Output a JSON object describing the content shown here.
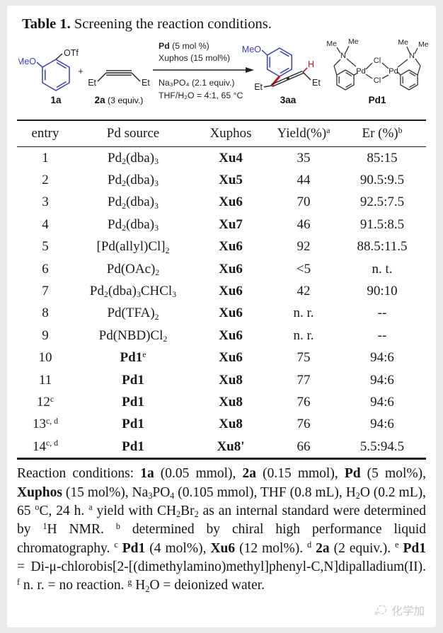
{
  "title": {
    "bold": "Table 1.",
    "rest": " Screening the reaction conditions."
  },
  "colors": {
    "structure_blue": "#3b3bc0",
    "highlight_red": "#c81414",
    "watermark_gray": "#c6c6c6"
  },
  "scheme": {
    "meo": "MeO",
    "otf": "OTf",
    "plus": "+",
    "et": "Et",
    "h": "H",
    "me": "Me",
    "n": "N",
    "pd": "Pd",
    "cl": "Cl",
    "label_1a": "1a",
    "label_2a_bold": "2a",
    "label_2a_rest": " (3 equiv.)",
    "label_3aa": "3aa",
    "label_pd1": "Pd1",
    "cond1_bold": "Pd",
    "cond1_rest": " (5 mol %)",
    "cond2": "Xuphos (15 mol%)",
    "cond3": "Na₃PO₄ (2.1 equiv.)",
    "cond4": "THF/H₂O = 4:1, 65 °C"
  },
  "table": {
    "headers": [
      [
        {
          "t": "entry"
        }
      ],
      [
        {
          "t": "Pd source"
        }
      ],
      [
        {
          "t": "Xuphos"
        }
      ],
      [
        {
          "t": "Yield(%)"
        },
        {
          "t": "a",
          "sup": 1
        }
      ],
      [
        {
          "t": "Er (%)"
        },
        {
          "t": "b",
          "sup": 1
        }
      ]
    ],
    "rows": [
      {
        "entry": [
          {
            "t": "1"
          }
        ],
        "pd": [
          {
            "t": "Pd"
          },
          {
            "t": "2",
            "sub": 1
          },
          {
            "t": "(dba)"
          },
          {
            "t": "3",
            "sub": 1
          }
        ],
        "xu": [
          {
            "t": "Xu4",
            "b": 1
          }
        ],
        "yield": [
          {
            "t": "35"
          }
        ],
        "er": [
          {
            "t": "85:15"
          }
        ]
      },
      {
        "entry": [
          {
            "t": "2"
          }
        ],
        "pd": [
          {
            "t": "Pd"
          },
          {
            "t": "2",
            "sub": 1
          },
          {
            "t": "(dba)"
          },
          {
            "t": "3",
            "sub": 1
          }
        ],
        "xu": [
          {
            "t": "Xu5",
            "b": 1
          }
        ],
        "yield": [
          {
            "t": "44"
          }
        ],
        "er": [
          {
            "t": "90.5:9.5"
          }
        ]
      },
      {
        "entry": [
          {
            "t": "3"
          }
        ],
        "pd": [
          {
            "t": "Pd"
          },
          {
            "t": "2",
            "sub": 1
          },
          {
            "t": "(dba)"
          },
          {
            "t": "3",
            "sub": 1
          }
        ],
        "xu": [
          {
            "t": "Xu6",
            "b": 1
          }
        ],
        "yield": [
          {
            "t": "70"
          }
        ],
        "er": [
          {
            "t": "92.5:7.5"
          }
        ]
      },
      {
        "entry": [
          {
            "t": "4"
          }
        ],
        "pd": [
          {
            "t": "Pd"
          },
          {
            "t": "2",
            "sub": 1
          },
          {
            "t": "(dba)"
          },
          {
            "t": "3",
            "sub": 1
          }
        ],
        "xu": [
          {
            "t": "Xu7",
            "b": 1
          }
        ],
        "yield": [
          {
            "t": "46"
          }
        ],
        "er": [
          {
            "t": "91.5:8.5"
          }
        ]
      },
      {
        "entry": [
          {
            "t": "5"
          }
        ],
        "pd": [
          {
            "t": "[Pd(allyl)Cl]"
          },
          {
            "t": "2",
            "sub": 1
          }
        ],
        "xu": [
          {
            "t": "Xu6",
            "b": 1
          }
        ],
        "yield": [
          {
            "t": "92"
          }
        ],
        "er": [
          {
            "t": "88.5:11.5"
          }
        ]
      },
      {
        "entry": [
          {
            "t": "6"
          }
        ],
        "pd": [
          {
            "t": "Pd(OAc)"
          },
          {
            "t": "2",
            "sub": 1
          }
        ],
        "xu": [
          {
            "t": "Xu6",
            "b": 1
          }
        ],
        "yield": [
          {
            "t": "<5"
          }
        ],
        "er": [
          {
            "t": "n. t."
          }
        ]
      },
      {
        "entry": [
          {
            "t": "7"
          }
        ],
        "pd": [
          {
            "t": "Pd"
          },
          {
            "t": "2",
            "sub": 1
          },
          {
            "t": "(dba)"
          },
          {
            "t": "3",
            "sub": 1
          },
          {
            "t": "CHCl"
          },
          {
            "t": "3",
            "sub": 1
          }
        ],
        "xu": [
          {
            "t": "Xu6",
            "b": 1
          }
        ],
        "yield": [
          {
            "t": "42"
          }
        ],
        "er": [
          {
            "t": "90:10"
          }
        ]
      },
      {
        "entry": [
          {
            "t": "8"
          }
        ],
        "pd": [
          {
            "t": "Pd(TFA)"
          },
          {
            "t": "2",
            "sub": 1
          }
        ],
        "xu": [
          {
            "t": "Xu6",
            "b": 1
          }
        ],
        "yield": [
          {
            "t": "n. r."
          }
        ],
        "er": [
          {
            "t": "--"
          }
        ]
      },
      {
        "entry": [
          {
            "t": "9"
          }
        ],
        "pd": [
          {
            "t": "Pd(NBD)Cl"
          },
          {
            "t": "2",
            "sub": 1
          }
        ],
        "xu": [
          {
            "t": "Xu6",
            "b": 1
          }
        ],
        "yield": [
          {
            "t": "n. r."
          }
        ],
        "er": [
          {
            "t": "--"
          }
        ]
      },
      {
        "entry": [
          {
            "t": "10"
          }
        ],
        "pd": [
          {
            "t": "Pd1",
            "b": 1
          },
          {
            "t": "e",
            "sup": 1
          }
        ],
        "xu": [
          {
            "t": "Xu6",
            "b": 1
          }
        ],
        "yield": [
          {
            "t": "75"
          }
        ],
        "er": [
          {
            "t": "94:6"
          }
        ]
      },
      {
        "entry": [
          {
            "t": "11"
          }
        ],
        "pd": [
          {
            "t": "Pd1",
            "b": 1
          }
        ],
        "xu": [
          {
            "t": "Xu8",
            "b": 1
          }
        ],
        "yield": [
          {
            "t": "77"
          }
        ],
        "er": [
          {
            "t": "94:6"
          }
        ]
      },
      {
        "entry": [
          {
            "t": "12"
          },
          {
            "t": "c",
            "sup": 1
          }
        ],
        "pd": [
          {
            "t": "Pd1",
            "b": 1
          }
        ],
        "xu": [
          {
            "t": "Xu8",
            "b": 1
          }
        ],
        "yield": [
          {
            "t": "76"
          }
        ],
        "er": [
          {
            "t": "94:6"
          }
        ]
      },
      {
        "entry": [
          {
            "t": "13"
          },
          {
            "t": "c, d",
            "sup": 1
          }
        ],
        "pd": [
          {
            "t": "Pd1",
            "b": 1
          }
        ],
        "xu": [
          {
            "t": "Xu8",
            "b": 1
          }
        ],
        "yield": [
          {
            "t": "76"
          }
        ],
        "er": [
          {
            "t": "94:6"
          }
        ]
      },
      {
        "entry": [
          {
            "t": "14"
          },
          {
            "t": "c, d",
            "sup": 1
          }
        ],
        "pd": [
          {
            "t": "Pd1",
            "b": 1
          }
        ],
        "xu": [
          {
            "t": "Xu8'",
            "b": 1
          }
        ],
        "yield": [
          {
            "t": "66"
          }
        ],
        "er": [
          {
            "t": "5.5:94.5"
          }
        ]
      }
    ]
  },
  "footnote": {
    "segments": [
      {
        "t": "Reaction conditions: "
      },
      {
        "t": "1a",
        "b": 1
      },
      {
        "t": " (0.05 mmol), "
      },
      {
        "t": "2a",
        "b": 1
      },
      {
        "t": " (0.15 mmol), "
      },
      {
        "t": "Pd",
        "b": 1
      },
      {
        "t": " (5 mol%), "
      },
      {
        "t": "Xuphos",
        "b": 1
      },
      {
        "t": " (15 mol%), Na"
      },
      {
        "t": "3",
        "sub": 1
      },
      {
        "t": "PO"
      },
      {
        "t": "4",
        "sub": 1
      },
      {
        "t": " (0.105 mmol), THF (0.8 mL), H"
      },
      {
        "t": "2",
        "sub": 1
      },
      {
        "t": "O (0.2 mL), 65 "
      },
      {
        "t": "o",
        "sup": 1
      },
      {
        "t": "C, 24 h. "
      },
      {
        "t": "a",
        "sup": 1
      },
      {
        "t": " yield with CH"
      },
      {
        "t": "2",
        "sub": 1
      },
      {
        "t": "Br"
      },
      {
        "t": "2",
        "sub": 1
      },
      {
        "t": " as an internal standard were determined by "
      },
      {
        "t": "1",
        "sup": 1
      },
      {
        "t": "H NMR. "
      },
      {
        "t": "b",
        "sup": 1
      },
      {
        "t": " determined by chiral high performance liquid chromatography. "
      },
      {
        "t": "c",
        "sup": 1
      },
      {
        "t": " "
      },
      {
        "t": "Pd1",
        "b": 1
      },
      {
        "t": " (4 mol%), "
      },
      {
        "t": "Xu6",
        "b": 1
      },
      {
        "t": " (12 mol%). "
      },
      {
        "t": "d",
        "sup": 1
      },
      {
        "t": " "
      },
      {
        "t": "2a",
        "b": 1
      },
      {
        "t": " (2 equiv.). "
      },
      {
        "t": "e",
        "sup": 1
      },
      {
        "t": " "
      },
      {
        "t": "Pd1",
        "b": 1
      },
      {
        "t": " = Di-μ-chlorobis[2-[(dimethylamino)methyl]phenyl-C,N]dipalladium(II). "
      },
      {
        "t": "f",
        "sup": 1
      },
      {
        "t": " n. r. = no reaction. "
      },
      {
        "t": "g",
        "sup": 1
      },
      {
        "t": " H"
      },
      {
        "t": "2",
        "sub": 1
      },
      {
        "t": "O = deionized water."
      }
    ]
  },
  "watermark": {
    "text": "化学加"
  }
}
